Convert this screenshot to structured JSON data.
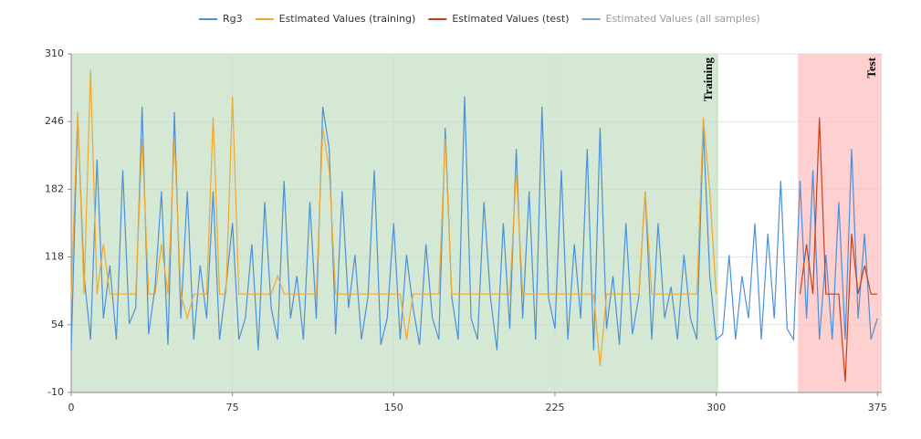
{
  "chart_data": {
    "type": "line",
    "series": [
      {
        "name": "Rg3",
        "color": "#4a90d9",
        "x": [
          0,
          3,
          6,
          9,
          12,
          15,
          18,
          21,
          24,
          27,
          30,
          33,
          36,
          39,
          42,
          45,
          48,
          51,
          54,
          57,
          60,
          63,
          66,
          69,
          72,
          75,
          78,
          81,
          84,
          87,
          90,
          93,
          96,
          99,
          102,
          105,
          108,
          111,
          114,
          117,
          120,
          123,
          126,
          129,
          132,
          135,
          138,
          141,
          144,
          147,
          150,
          153,
          156,
          159,
          162,
          165,
          168,
          171,
          174,
          177,
          180,
          183,
          186,
          189,
          192,
          195,
          198,
          201,
          204,
          207,
          210,
          213,
          216,
          219,
          222,
          225,
          228,
          231,
          234,
          237,
          240,
          243,
          246,
          249,
          252,
          255,
          258,
          261,
          264,
          267,
          270,
          273,
          276,
          279,
          282,
          285,
          288,
          291,
          294,
          297,
          300,
          303,
          306,
          309,
          312,
          315,
          318,
          321,
          324,
          327,
          330,
          333,
          336,
          339,
          342,
          345,
          348,
          351,
          354,
          357,
          360,
          363,
          366,
          369,
          372,
          375
        ],
        "values": [
          30,
          250,
          100,
          40,
          210,
          60,
          110,
          40,
          200,
          55,
          70,
          260,
          45,
          90,
          180,
          35,
          255,
          60,
          180,
          40,
          110,
          60,
          180,
          40,
          90,
          150,
          40,
          60,
          130,
          30,
          170,
          70,
          40,
          190,
          60,
          100,
          40,
          170,
          60,
          260,
          220,
          45,
          180,
          70,
          120,
          40,
          80,
          200,
          35,
          60,
          150,
          40,
          120,
          70,
          35,
          130,
          60,
          40,
          240,
          80,
          40,
          270,
          60,
          40,
          170,
          80,
          30,
          150,
          50,
          220,
          60,
          180,
          40,
          260,
          80,
          50,
          200,
          40,
          130,
          60,
          220,
          30,
          240,
          50,
          100,
          35,
          150,
          45,
          80,
          180,
          40,
          150,
          60,
          90,
          40,
          120,
          60,
          40,
          240,
          100,
          40,
          45,
          120,
          40,
          100,
          60,
          150,
          40,
          140,
          60,
          190,
          50,
          40,
          190,
          60,
          200,
          40,
          120,
          40,
          170,
          40,
          220,
          60,
          140,
          40,
          60
        ]
      },
      {
        "name": "Estimated Values (training)",
        "color": "#f0a830",
        "x": [
          0,
          3,
          6,
          9,
          12,
          15,
          18,
          21,
          24,
          27,
          30,
          33,
          36,
          39,
          42,
          45,
          48,
          51,
          54,
          57,
          60,
          63,
          66,
          69,
          72,
          75,
          78,
          81,
          84,
          87,
          90,
          93,
          96,
          99,
          102,
          105,
          108,
          111,
          114,
          117,
          120,
          123,
          126,
          129,
          132,
          135,
          138,
          141,
          144,
          147,
          150,
          153,
          156,
          159,
          162,
          165,
          168,
          171,
          174,
          177,
          180,
          183,
          186,
          189,
          192,
          195,
          198,
          201,
          204,
          207,
          210,
          213,
          216,
          219,
          222,
          225,
          228,
          231,
          234,
          237,
          240,
          243,
          246,
          249,
          252,
          255,
          258,
          261,
          264,
          267,
          270,
          273,
          276,
          279,
          282,
          285,
          288,
          291,
          294,
          297,
          300
        ],
        "values": [
          83,
          255,
          83,
          295,
          83,
          130,
          83,
          83,
          83,
          83,
          83,
          230,
          83,
          83,
          130,
          83,
          230,
          83,
          60,
          83,
          83,
          83,
          250,
          83,
          83,
          270,
          83,
          83,
          83,
          83,
          83,
          83,
          100,
          83,
          83,
          83,
          83,
          83,
          83,
          240,
          200,
          83,
          83,
          83,
          83,
          83,
          83,
          83,
          83,
          83,
          83,
          83,
          40,
          83,
          83,
          83,
          83,
          83,
          230,
          83,
          83,
          83,
          83,
          83,
          83,
          83,
          83,
          83,
          83,
          200,
          83,
          83,
          83,
          83,
          83,
          83,
          83,
          83,
          83,
          83,
          83,
          83,
          15,
          83,
          83,
          83,
          83,
          83,
          83,
          180,
          83,
          83,
          83,
          83,
          83,
          83,
          83,
          83,
          250,
          180,
          83
        ]
      },
      {
        "name": "Estimated Values (test)",
        "color": "#c8401a",
        "x": [
          339,
          342,
          345,
          348,
          351,
          354,
          357,
          360,
          363,
          366,
          369,
          372,
          375
        ],
        "values": [
          83,
          130,
          83,
          250,
          83,
          83,
          83,
          0,
          140,
          83,
          110,
          83,
          83
        ]
      },
      {
        "name": "Estimated Values (all samples)",
        "color": "#1f5fa8",
        "visible": false
      }
    ],
    "regions": [
      {
        "label": "Training",
        "start": 0,
        "end": 301,
        "color": "#d5e8d4"
      },
      {
        "label": "Test",
        "start": 338,
        "end": 377,
        "color": "#ffd0d0"
      }
    ],
    "xlim": [
      0,
      377
    ],
    "xticks": [
      0,
      75,
      150,
      225,
      300,
      375
    ],
    "ylim": [
      -10,
      310
    ],
    "yticks": [
      -10,
      54,
      118,
      182,
      246,
      310
    ],
    "grid": true,
    "legend": "top"
  }
}
